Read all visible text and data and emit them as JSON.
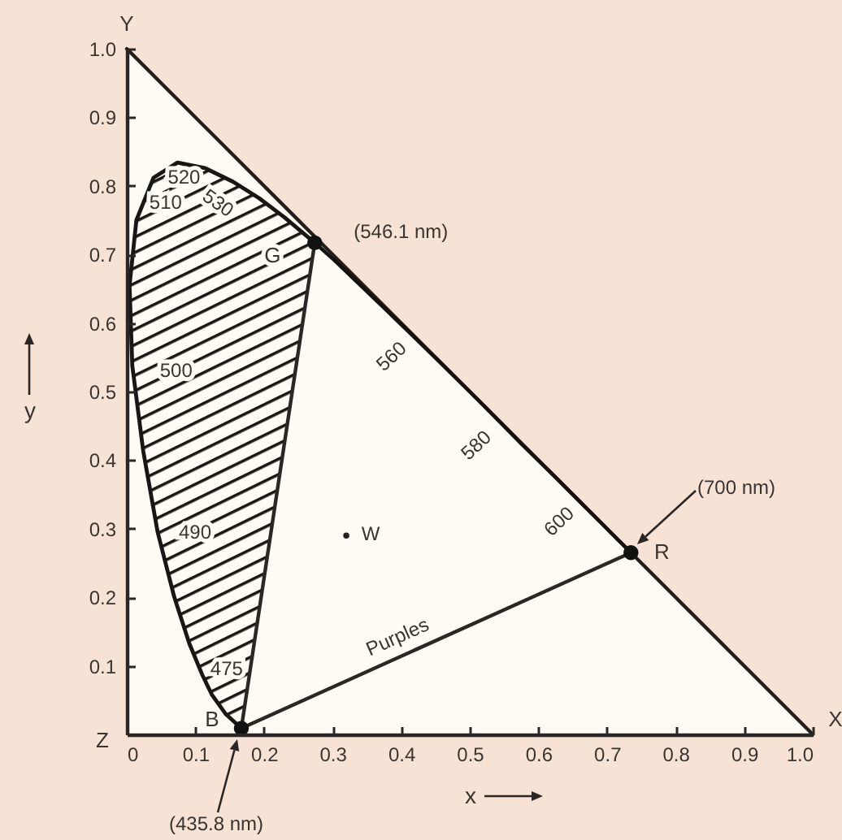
{
  "chart_data": {
    "type": "line",
    "xlim": [
      0,
      1
    ],
    "ylim": [
      0,
      1
    ],
    "xticks": [
      0,
      0.1,
      0.2,
      0.3,
      0.4,
      0.5,
      0.6,
      0.7,
      0.8,
      0.9,
      {
        "value": 1,
        "label": "1.0"
      }
    ],
    "yticks": [
      0.1,
      0.2,
      0.3,
      0.4,
      0.5,
      0.6,
      0.7,
      0.8,
      0.9,
      {
        "value": 1,
        "label": "1.0"
      }
    ],
    "xlabel": "x",
    "ylabel": "y",
    "series": [
      {
        "color": "#231f1c",
        "x": [
          0,
          1
        ],
        "values": [
          1,
          0
        ]
      },
      {
        "type": "area",
        "color": "#1a1614",
        "x": [
          0.167,
          0.157,
          0.144,
          0.124,
          0.11,
          0.091,
          0.069,
          0.045,
          0.024,
          0.008,
          0.004,
          0.014,
          0.039,
          0.074,
          0.114,
          0.155,
          0.193,
          0.23,
          0.274
        ],
        "values": [
          0.009,
          0.018,
          0.03,
          0.058,
          0.087,
          0.133,
          0.201,
          0.295,
          0.413,
          0.538,
          0.655,
          0.75,
          0.812,
          0.834,
          0.826,
          0.806,
          0.782,
          0.754,
          0.717
        ]
      },
      {
        "color": "#14110f",
        "x": [
          0.274,
          0.302,
          0.373,
          0.444,
          0.513,
          0.575,
          0.627,
          0.666,
          0.692,
          0.719,
          0.735
        ],
        "values": [
          0.717,
          0.692,
          0.624,
          0.555,
          0.487,
          0.424,
          0.373,
          0.334,
          0.308,
          0.281,
          0.265
        ]
      },
      {
        "color": "#2c2724",
        "x": [
          0.735,
          0.167,
          0.274
        ],
        "values": [
          0.265,
          0.009,
          0.717
        ]
      },
      {
        "type": "scatter",
        "color": "#111111",
        "x": [
          0.167,
          0.274,
          0.735
        ],
        "values": [
          0.009,
          0.717,
          0.265
        ]
      },
      {
        "type": "scatter",
        "color": "#222222",
        "x": [
          0.32
        ],
        "values": [
          0.29
        ]
      }
    ],
    "annotations": [
      "Y",
      "X",
      "Z",
      {
        "text": "520",
        "x": 0.074,
        "y": 0.834
      },
      {
        "text": "510",
        "x": 0.014,
        "y": 0.75
      },
      {
        "text": "530",
        "x": 0.155,
        "y": 0.806
      },
      {
        "text": "500",
        "x": 0.008,
        "y": 0.538
      },
      {
        "text": "490",
        "x": 0.045,
        "y": 0.295
      },
      {
        "text": "475",
        "x": 0.11,
        "y": 0.087
      },
      {
        "text": "560",
        "x": 0.373,
        "y": 0.624
      },
      {
        "text": "580",
        "x": 0.513,
        "y": 0.487
      },
      {
        "text": "600",
        "x": 0.627,
        "y": 0.373
      },
      {
        "text": "G",
        "x": 0.274,
        "y": 0.717
      },
      {
        "text": "(546.1 nm)",
        "x": 0.274,
        "y": 0.717
      },
      {
        "text": "B",
        "x": 0.167,
        "y": 0.009
      },
      "(435.8 nm)",
      {
        "text": "R",
        "x": 0.735,
        "y": 0.265
      },
      "(700 nm)",
      {
        "text": "W",
        "x": 0.32,
        "y": 0.29
      },
      {
        "text": "Purples",
        "x": 0.42,
        "y": 0.12
      }
    ]
  }
}
